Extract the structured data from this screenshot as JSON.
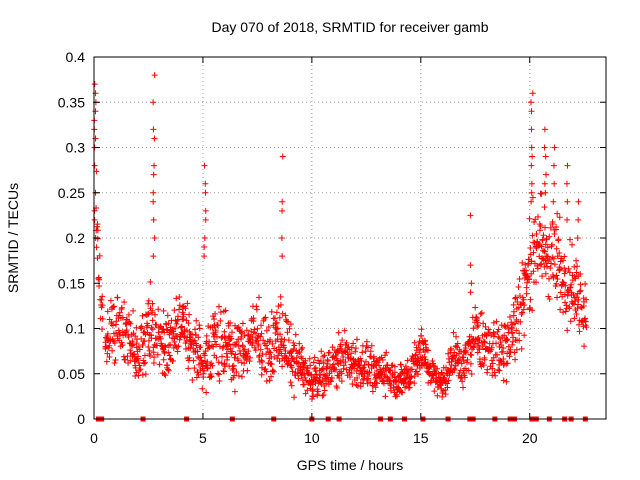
{
  "chart_data": {
    "type": "scatter",
    "title": "Day 070 of 2018, SRMTID for receiver gamb",
    "xlabel": "GPS time / hours",
    "ylabel": "SRMTID / TECUs",
    "xlim": [
      0,
      23.5
    ],
    "ylim": [
      0,
      0.4
    ],
    "x_ticks": [
      0,
      5,
      10,
      15,
      20
    ],
    "x_tick_labels": [
      "0",
      "5",
      "10",
      "15",
      "20"
    ],
    "y_ticks": [
      0,
      0.05,
      0.1,
      0.15,
      0.2,
      0.25,
      0.3,
      0.35,
      0.4
    ],
    "y_tick_labels": [
      "0",
      "0.05",
      "0.1",
      "0.15",
      "0.2",
      "0.25",
      "0.3",
      "0.35",
      "0.4"
    ],
    "grid": true,
    "marker": "plus",
    "color": "#ff0000",
    "envelope": {
      "x": [
        0,
        0.3,
        0.6,
        1.0,
        1.5,
        2.0,
        2.5,
        3.0,
        3.5,
        4.0,
        4.5,
        5.0,
        5.5,
        6.0,
        6.5,
        7.0,
        7.5,
        8.0,
        8.5,
        9.0,
        9.5,
        10.0,
        10.5,
        11.0,
        11.5,
        12.0,
        12.5,
        13.0,
        13.5,
        14.0,
        14.5,
        15.0,
        15.5,
        16.0,
        16.5,
        17.0,
        17.5,
        18.0,
        18.5,
        19.0,
        19.5,
        20.0,
        20.5,
        21.0,
        21.5,
        22.0,
        22.5
      ],
      "center": [
        0.3,
        0.13,
        0.08,
        0.11,
        0.1,
        0.07,
        0.1,
        0.09,
        0.08,
        0.11,
        0.08,
        0.06,
        0.09,
        0.08,
        0.07,
        0.08,
        0.09,
        0.07,
        0.1,
        0.07,
        0.06,
        0.04,
        0.05,
        0.06,
        0.07,
        0.06,
        0.06,
        0.05,
        0.05,
        0.04,
        0.05,
        0.08,
        0.05,
        0.04,
        0.07,
        0.06,
        0.09,
        0.08,
        0.07,
        0.09,
        0.11,
        0.18,
        0.19,
        0.18,
        0.16,
        0.15,
        0.12
      ],
      "spread": [
        0.06,
        0.04,
        0.03,
        0.035,
        0.035,
        0.03,
        0.04,
        0.035,
        0.03,
        0.035,
        0.03,
        0.025,
        0.035,
        0.035,
        0.03,
        0.03,
        0.035,
        0.03,
        0.035,
        0.03,
        0.025,
        0.02,
        0.02,
        0.025,
        0.03,
        0.025,
        0.025,
        0.02,
        0.02,
        0.015,
        0.02,
        0.03,
        0.02,
        0.015,
        0.025,
        0.02,
        0.035,
        0.03,
        0.03,
        0.035,
        0.04,
        0.05,
        0.055,
        0.05,
        0.045,
        0.045,
        0.035
      ]
    },
    "spikes": [
      {
        "x": 0.05,
        "values": [
          0.37,
          0.36,
          0.35,
          0.34,
          0.33,
          0.32,
          0.31,
          0.3,
          0.28,
          0.25,
          0.23,
          0.22,
          0.2
        ]
      },
      {
        "x": 2.75,
        "values": [
          0.38,
          0.35,
          0.32,
          0.31,
          0.28,
          0.27,
          0.25,
          0.24,
          0.22,
          0.2,
          0.18
        ]
      },
      {
        "x": 5.1,
        "values": [
          0.28,
          0.26,
          0.25,
          0.23,
          0.22,
          0.2,
          0.19,
          0.18
        ]
      },
      {
        "x": 8.65,
        "values": [
          0.29,
          0.24,
          0.23,
          0.2,
          0.18
        ]
      },
      {
        "x": 17.3,
        "values": [
          0.225,
          0.17,
          0.15,
          0.14
        ]
      },
      {
        "x": 20.1,
        "values": [
          0.36,
          0.35,
          0.34,
          0.32,
          0.3,
          0.29,
          0.28,
          0.26,
          0.25,
          0.24
        ]
      },
      {
        "x": 20.7,
        "values": [
          0.32,
          0.3,
          0.29,
          0.27,
          0.26,
          0.25
        ]
      },
      {
        "x": 21.1,
        "values": [
          0.3,
          0.28,
          0.26,
          0.24
        ]
      },
      {
        "x": 21.7,
        "values": [
          0.28,
          0.26,
          0.24,
          0.22
        ]
      },
      {
        "x": 22.2,
        "values": [
          0.24,
          0.22,
          0.2
        ]
      }
    ],
    "zero_markers_x": [
      0.2,
      0.35,
      2.25,
      4.25,
      6.35,
      8.25,
      10.0,
      10.75,
      11.25,
      13.15,
      13.6,
      14.25,
      15.1,
      16.25,
      17.25,
      17.4,
      18.4,
      19.1,
      19.3,
      20.1,
      20.3,
      20.9,
      21.6,
      21.9,
      22.55
    ]
  }
}
